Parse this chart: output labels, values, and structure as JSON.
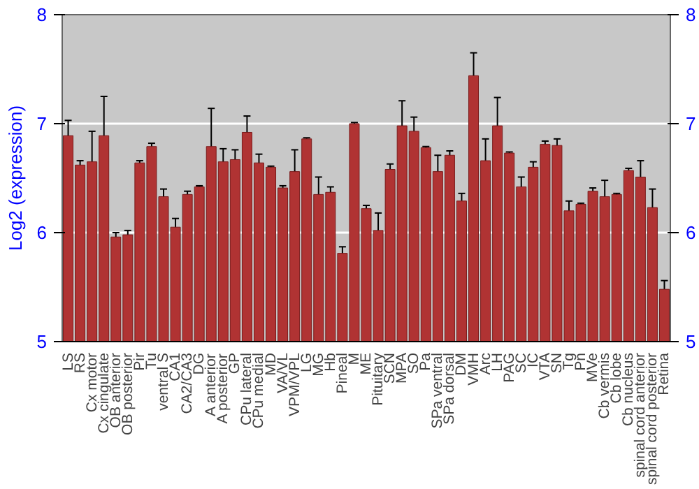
{
  "chart_data": {
    "type": "bar",
    "ylabel": "Log2 (expression)",
    "categories": [
      "LS",
      "RS",
      "Cx motor",
      "Cx cingulate",
      "OB anterior",
      "OB posterior",
      "Pir",
      "Tu",
      "ventral S",
      "CA1",
      "CA2/CA3",
      "DG",
      "A anterior",
      "A posterior",
      "GP",
      "CPu lateral",
      "CPu medial",
      "MD",
      "VA/VL",
      "VPM/VPL",
      "LG",
      "MG",
      "Hb",
      "Pineal",
      "M",
      "ME",
      "Pituitary",
      "SCN",
      "MPA",
      "SO",
      "Pa",
      "SPa ventral",
      "SPa dorsal",
      "DM",
      "VMH",
      "Arc",
      "LH",
      "PAG",
      "SC",
      "IC",
      "VTA",
      "SN",
      "Tg",
      "Pn",
      "MVe",
      "Cb vermis",
      "Cb lobe",
      "Cb nucleus",
      "spinal cord anterior",
      "spinal cord posterior",
      "Retina"
    ],
    "values": [
      6.89,
      6.62,
      6.65,
      6.89,
      5.96,
      5.98,
      6.64,
      6.79,
      6.33,
      6.05,
      6.35,
      6.42,
      6.79,
      6.65,
      6.67,
      6.92,
      6.64,
      6.6,
      6.41,
      6.56,
      6.86,
      6.35,
      6.37,
      5.81,
      7.0,
      6.22,
      6.02,
      6.58,
      6.98,
      6.93,
      6.78,
      6.56,
      6.71,
      6.29,
      7.44,
      6.66,
      6.98,
      6.73,
      6.42,
      6.6,
      6.81,
      6.8,
      6.2,
      6.26,
      6.38,
      6.33,
      6.35,
      6.57,
      6.51,
      6.23,
      5.48
    ],
    "errors": [
      0.14,
      0.04,
      0.28,
      0.36,
      0.04,
      0.04,
      0.02,
      0.03,
      0.07,
      0.08,
      0.03,
      0.01,
      0.35,
      0.12,
      0.09,
      0.15,
      0.08,
      0.01,
      0.02,
      0.2,
      0.01,
      0.16,
      0.05,
      0.06,
      0.01,
      0.03,
      0.16,
      0.05,
      0.23,
      0.13,
      0.01,
      0.15,
      0.04,
      0.07,
      0.21,
      0.2,
      0.26,
      0.01,
      0.09,
      0.05,
      0.03,
      0.06,
      0.09,
      0.01,
      0.03,
      0.15,
      0.01,
      0.02,
      0.15,
      0.17,
      0.08
    ],
    "color": "#b03333",
    "ylim": [
      5,
      8
    ],
    "yticks": [
      5,
      6,
      7,
      8
    ],
    "y2lim": [
      5,
      8
    ],
    "y2ticks": [
      5,
      6,
      7,
      8
    ],
    "grid": "y"
  }
}
